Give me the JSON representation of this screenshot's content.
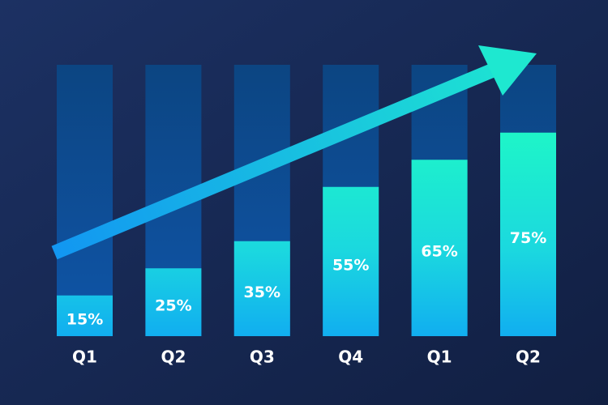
{
  "chart_data": {
    "type": "bar",
    "categories": [
      "Q1",
      "Q2",
      "Q3",
      "Q4",
      "Q1",
      "Q2"
    ],
    "values": [
      15,
      25,
      35,
      55,
      65,
      75
    ],
    "value_labels": [
      "15%",
      "25%",
      "35%",
      "55%",
      "65%",
      "75%"
    ],
    "ylim": [
      0,
      100
    ]
  }
}
